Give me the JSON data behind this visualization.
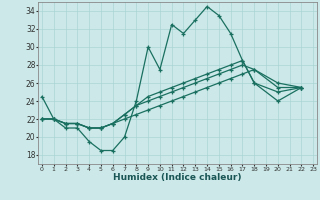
{
  "xlabel": "Humidex (Indice chaleur)",
  "background_color": "#cce8e8",
  "grid_color": "#aad4d4",
  "line_color": "#1a7060",
  "xlim": [
    -0.3,
    23.3
  ],
  "ylim": [
    17,
    35
  ],
  "xticks": [
    0,
    1,
    2,
    3,
    4,
    5,
    6,
    7,
    8,
    9,
    10,
    11,
    12,
    13,
    14,
    15,
    16,
    17,
    18,
    19,
    20,
    21,
    22,
    23
  ],
  "yticks": [
    18,
    20,
    22,
    24,
    26,
    28,
    30,
    32,
    34
  ],
  "line1_x": [
    0,
    1,
    2,
    3,
    4,
    5,
    6,
    7,
    8,
    9,
    10,
    11,
    12,
    13,
    14,
    15,
    16,
    17,
    18,
    20,
    22
  ],
  "line1_y": [
    24.5,
    22.0,
    21.0,
    21.0,
    19.5,
    18.5,
    18.5,
    20.0,
    24.0,
    30.0,
    27.5,
    32.5,
    31.5,
    33.0,
    34.5,
    33.5,
    31.5,
    28.5,
    26.0,
    24.0,
    25.5
  ],
  "line2_x": [
    0,
    1,
    2,
    3,
    4,
    5,
    6,
    7,
    8,
    9,
    10,
    11,
    12,
    13,
    14,
    15,
    16,
    17,
    18,
    20,
    22
  ],
  "line2_y": [
    22.0,
    22.0,
    21.5,
    21.5,
    21.0,
    21.0,
    21.5,
    22.0,
    22.5,
    23.0,
    23.5,
    24.0,
    24.5,
    25.0,
    25.5,
    26.0,
    26.5,
    27.0,
    27.5,
    26.0,
    25.5
  ],
  "line3_x": [
    0,
    1,
    2,
    3,
    4,
    5,
    6,
    7,
    8,
    9,
    10,
    11,
    12,
    13,
    14,
    15,
    16,
    17,
    18,
    20,
    22
  ],
  "line3_y": [
    22.0,
    22.0,
    21.5,
    21.5,
    21.0,
    21.0,
    21.5,
    22.5,
    23.5,
    24.0,
    24.5,
    25.0,
    25.5,
    26.0,
    26.5,
    27.0,
    27.5,
    28.0,
    27.5,
    25.5,
    25.5
  ],
  "line4_x": [
    0,
    1,
    2,
    3,
    4,
    5,
    6,
    7,
    8,
    9,
    10,
    11,
    12,
    13,
    14,
    15,
    16,
    17,
    18,
    20,
    22
  ],
  "line4_y": [
    22.0,
    22.0,
    21.5,
    21.5,
    21.0,
    21.0,
    21.5,
    22.5,
    23.5,
    24.5,
    25.0,
    25.5,
    26.0,
    26.5,
    27.0,
    27.5,
    28.0,
    28.5,
    26.0,
    25.0,
    25.5
  ]
}
